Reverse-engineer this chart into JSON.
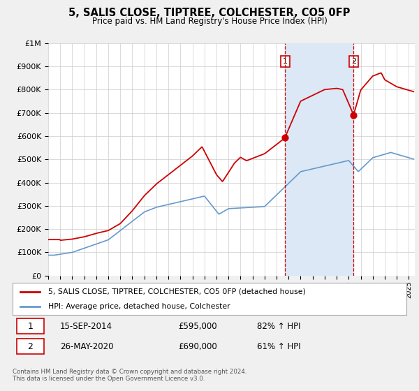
{
  "title": "5, SALIS CLOSE, TIPTREE, COLCHESTER, CO5 0FP",
  "subtitle": "Price paid vs. HM Land Registry's House Price Index (HPI)",
  "ylim": [
    0,
    1000000
  ],
  "xlim_start": 1995.0,
  "xlim_end": 2025.5,
  "background_color": "#f0f0f0",
  "plot_bg_color": "#ffffff",
  "grid_color": "#cccccc",
  "red_line_color": "#cc0000",
  "blue_line_color": "#6699cc",
  "shade_color": "#dce8f5",
  "sale1_x": 2014.708,
  "sale1_y": 595000,
  "sale2_x": 2020.4,
  "sale2_y": 690000,
  "legend_line1": "5, SALIS CLOSE, TIPTREE, COLCHESTER, CO5 0FP (detached house)",
  "legend_line2": "HPI: Average price, detached house, Colchester",
  "sale1_date": "15-SEP-2014",
  "sale1_price": "£595,000",
  "sale1_hpi": "82% ↑ HPI",
  "sale2_date": "26-MAY-2020",
  "sale2_price": "£690,000",
  "sale2_hpi": "61% ↑ HPI",
  "footer1": "Contains HM Land Registry data © Crown copyright and database right 2024.",
  "footer2": "This data is licensed under the Open Government Licence v3.0.",
  "ytick_labels": [
    "£0",
    "£100K",
    "£200K",
    "£300K",
    "£400K",
    "£500K",
    "£600K",
    "£700K",
    "£800K",
    "£900K",
    "£1M"
  ],
  "ytick_values": [
    0,
    100000,
    200000,
    300000,
    400000,
    500000,
    600000,
    700000,
    800000,
    900000,
    1000000
  ]
}
